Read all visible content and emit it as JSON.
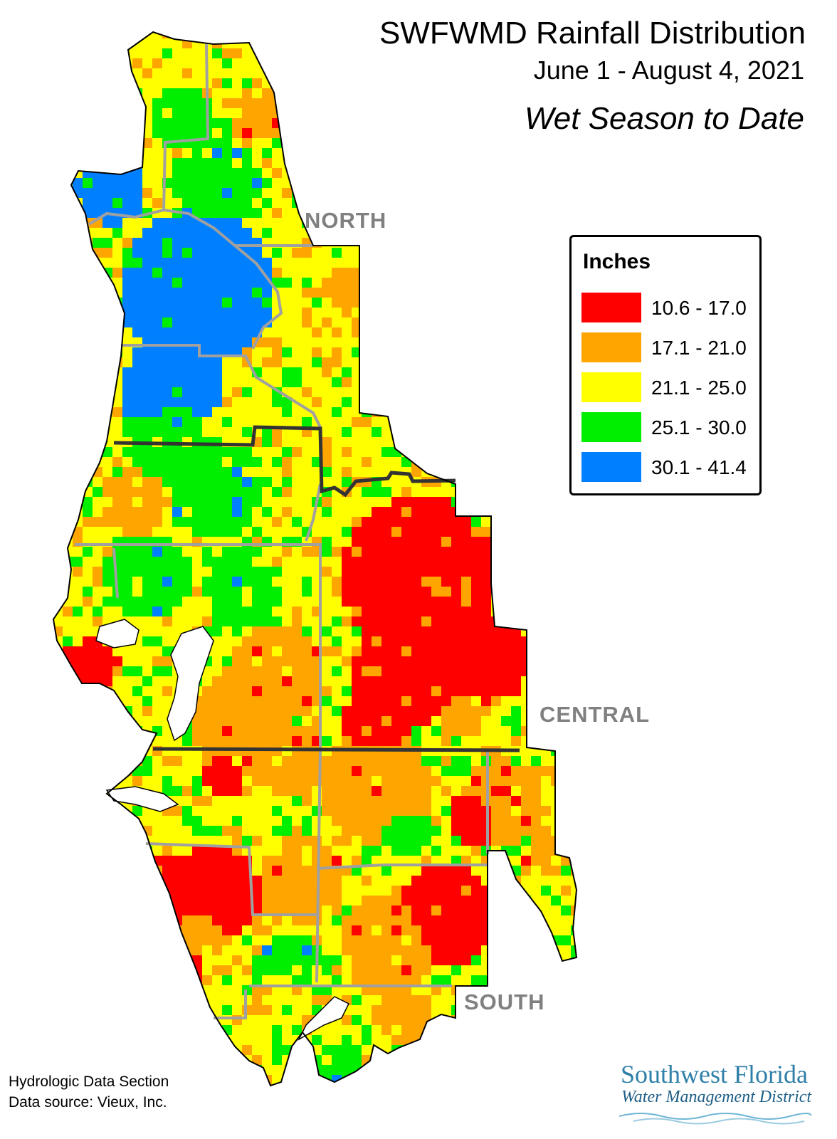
{
  "header": {
    "title": "SWFWMD Rainfall Distribution",
    "date_range": "June 1 - August 4, 2021",
    "subtitle": "Wet Season to Date"
  },
  "regions": {
    "north": "NORTH",
    "central": "CENTRAL",
    "south": "SOUTH"
  },
  "legend": {
    "title": "Inches",
    "items": [
      {
        "label": "10.6 - 17.0",
        "color": "#ff0000"
      },
      {
        "label": "17.1 - 21.0",
        "color": "#ffa500"
      },
      {
        "label": "21.1 - 25.0",
        "color": "#ffff00"
      },
      {
        "label": "25.1 - 30.0",
        "color": "#00ee00"
      },
      {
        "label": "30.1 - 41.4",
        "color": "#0080ff"
      }
    ]
  },
  "footer": {
    "section": "Hydrologic Data Section",
    "source": "Data source: Vieux, Inc."
  },
  "logo": {
    "line1": "Southwest Florida",
    "line2": "Water Management District"
  },
  "colors": {
    "region_border": "#333333",
    "county_border": "#a0a0a0",
    "water": "#ffffff"
  }
}
